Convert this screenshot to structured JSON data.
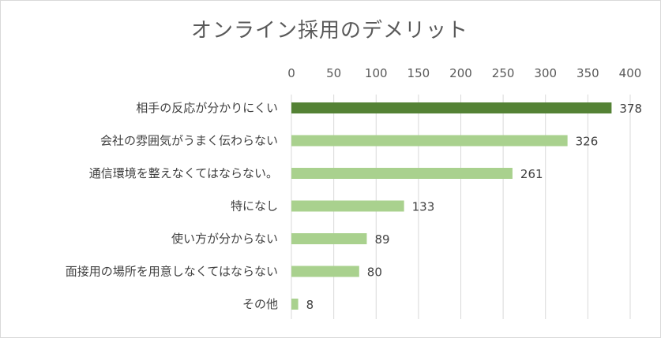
{
  "chart_data": {
    "type": "bar",
    "orientation": "horizontal",
    "title": "オンライン採用のデメリット",
    "categories": [
      "相手の反応が分かりにくい",
      "会社の雰囲気がうまく伝わらない",
      "通信環境を整えなくてはならない。",
      "特になし",
      "使い方が分からない",
      "面接用の場所を用意しなくてはならない",
      "その他"
    ],
    "values": [
      378,
      326,
      261,
      133,
      89,
      80,
      8
    ],
    "xlim": [
      0,
      400
    ],
    "ticks": [
      "0",
      "50",
      "100",
      "150",
      "200",
      "250",
      "300",
      "350",
      "400"
    ],
    "x_axis_position": "top",
    "grid": true,
    "legend": "none",
    "colors": {
      "highlight": "#548235",
      "bar": "#a9d18e",
      "grid": "#d9d9d9"
    }
  }
}
